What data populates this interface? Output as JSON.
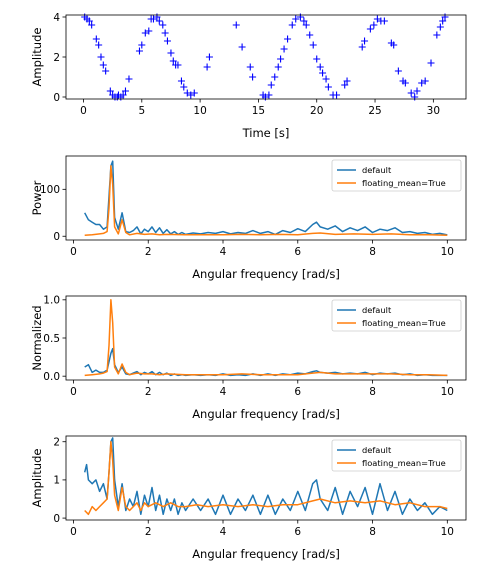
{
  "colors": {
    "blue": "#1f77b4",
    "orange": "#ff7f0e",
    "marker": "#0000ff"
  },
  "chart_data": [
    {
      "type": "scatter",
      "marker": "+",
      "xlabel": "Time [s]",
      "ylabel": "Amplitude",
      "xlim": [
        -1.5,
        32.8
      ],
      "ylim": [
        -0.1,
        4.1
      ],
      "xticks": [
        "0",
        "5",
        "10",
        "15",
        "20",
        "25",
        "30"
      ],
      "yticks": [
        "0",
        "2",
        "4"
      ],
      "x": [
        0.1,
        0.3,
        0.5,
        0.7,
        1.1,
        1.3,
        1.5,
        1.7,
        1.9,
        2.3,
        2.5,
        2.7,
        2.9,
        3.0,
        3.2,
        3.4,
        3.6,
        3.9,
        4.8,
        5.0,
        5.3,
        5.6,
        5.8,
        6.0,
        6.3,
        6.5,
        6.8,
        7.0,
        7.2,
        7.5,
        7.7,
        7.9,
        8.1,
        8.4,
        8.6,
        8.9,
        9.2,
        9.5,
        10.6,
        10.8,
        13.1,
        13.6,
        14.3,
        14.5,
        15.4,
        15.6,
        15.9,
        16.1,
        16.4,
        16.7,
        16.9,
        17.2,
        17.5,
        17.9,
        18.2,
        18.6,
        18.9,
        19.1,
        19.4,
        19.7,
        20.0,
        20.3,
        20.5,
        20.8,
        21.0,
        21.4,
        21.7,
        22.4,
        22.6,
        23.9,
        24.1,
        24.6,
        24.9,
        25.2,
        25.5,
        25.8,
        26.4,
        26.6,
        27.0,
        27.4,
        27.6,
        28.1,
        28.4,
        28.6,
        29.0,
        29.3,
        29.8,
        30.3,
        30.6,
        30.8,
        31.0
      ],
      "y": [
        4.0,
        3.9,
        3.8,
        3.6,
        2.9,
        2.6,
        2.0,
        1.6,
        1.3,
        0.3,
        0.1,
        0.0,
        0.0,
        0.1,
        0.0,
        0.1,
        0.3,
        0.9,
        2.3,
        2.6,
        3.2,
        3.3,
        3.9,
        3.9,
        4.0,
        3.8,
        3.6,
        3.2,
        2.8,
        2.2,
        1.8,
        1.6,
        1.6,
        0.8,
        0.5,
        0.2,
        0.1,
        0.2,
        1.5,
        2.0,
        3.6,
        2.5,
        1.5,
        1.0,
        0.1,
        0.0,
        0.1,
        0.6,
        1.0,
        1.5,
        1.9,
        2.4,
        2.9,
        3.6,
        3.9,
        4.0,
        3.8,
        3.6,
        3.1,
        2.6,
        1.9,
        1.5,
        1.2,
        0.9,
        0.5,
        0.1,
        0.1,
        0.6,
        0.8,
        2.5,
        2.8,
        3.4,
        3.6,
        3.9,
        3.8,
        3.8,
        2.7,
        2.6,
        1.3,
        0.8,
        0.7,
        0.2,
        0.0,
        0.3,
        0.7,
        0.8,
        1.7,
        3.1,
        3.5,
        3.8,
        4.0
      ]
    },
    {
      "type": "line",
      "xlabel": "Angular frequency [rad/s]",
      "ylabel": "Power",
      "xlim": [
        -0.2,
        10.5
      ],
      "ylim": [
        -8,
        171
      ],
      "xticks": [
        "0",
        "2",
        "4",
        "6",
        "8",
        "10"
      ],
      "yticks": [
        "0",
        "100"
      ],
      "legend": "upper-right",
      "series": [
        {
          "name": "default",
          "color": "#1f77b4",
          "x": [
            0.3,
            0.4,
            0.5,
            0.6,
            0.7,
            0.8,
            0.9,
            1.0,
            1.05,
            1.1,
            1.2,
            1.3,
            1.4,
            1.5,
            1.6,
            1.7,
            1.8,
            1.9,
            2.0,
            2.1,
            2.2,
            2.3,
            2.4,
            2.5,
            2.6,
            2.7,
            2.8,
            2.9,
            3.0,
            3.2,
            3.4,
            3.6,
            3.8,
            4.0,
            4.2,
            4.4,
            4.6,
            4.8,
            5.0,
            5.2,
            5.4,
            5.6,
            5.8,
            6.0,
            6.2,
            6.4,
            6.5,
            6.6,
            6.8,
            7.0,
            7.2,
            7.4,
            7.6,
            7.8,
            8.0,
            8.2,
            8.4,
            8.6,
            8.8,
            9.0,
            9.2,
            9.4,
            9.6,
            9.8,
            10.0
          ],
          "y": [
            50,
            35,
            30,
            25,
            25,
            15,
            20,
            150,
            160,
            40,
            15,
            50,
            10,
            8,
            12,
            20,
            5,
            15,
            10,
            20,
            8,
            18,
            6,
            14,
            5,
            10,
            4,
            8,
            4,
            7,
            5,
            8,
            6,
            10,
            5,
            8,
            6,
            12,
            6,
            10,
            4,
            12,
            8,
            16,
            10,
            25,
            30,
            20,
            15,
            22,
            10,
            18,
            12,
            20,
            8,
            15,
            12,
            18,
            8,
            10,
            6,
            8,
            4,
            6,
            3
          ]
        },
        {
          "name": "floating_mean=True",
          "color": "#ff7f0e",
          "x": [
            0.3,
            0.5,
            0.7,
            0.8,
            0.9,
            0.95,
            1.0,
            1.05,
            1.1,
            1.2,
            1.3,
            1.4,
            1.5,
            1.7,
            1.9,
            2.1,
            2.3,
            2.5,
            3.0,
            3.5,
            4.0,
            4.5,
            5.0,
            5.5,
            6.0,
            6.4,
            6.6,
            7.0,
            7.5,
            8.0,
            8.5,
            9.0,
            9.5,
            10.0
          ],
          "y": [
            2,
            3,
            5,
            6,
            10,
            60,
            150,
            110,
            20,
            5,
            35,
            8,
            3,
            6,
            4,
            5,
            3,
            4,
            3,
            3,
            3,
            4,
            3,
            4,
            3,
            6,
            7,
            4,
            5,
            4,
            5,
            3,
            3,
            2
          ]
        }
      ]
    },
    {
      "type": "line",
      "xlabel": "Angular frequency [rad/s]",
      "ylabel": "Normalized",
      "xlim": [
        -0.2,
        10.5
      ],
      "ylim": [
        -0.05,
        1.05
      ],
      "xticks": [
        "0",
        "2",
        "4",
        "6",
        "8",
        "10"
      ],
      "yticks": [
        "0.0",
        "0.5",
        "1.0"
      ],
      "legend": "upper-right",
      "series": [
        {
          "name": "default",
          "color": "#1f77b4",
          "x": [
            0.3,
            0.4,
            0.5,
            0.6,
            0.7,
            0.8,
            0.9,
            1.0,
            1.05,
            1.1,
            1.2,
            1.3,
            1.4,
            1.5,
            1.6,
            1.7,
            1.8,
            1.9,
            2.0,
            2.1,
            2.2,
            2.3,
            2.4,
            2.5,
            2.6,
            2.7,
            2.8,
            2.9,
            3.0,
            3.2,
            3.4,
            3.6,
            3.8,
            4.0,
            4.2,
            4.4,
            4.6,
            4.8,
            5.0,
            5.2,
            5.4,
            5.6,
            5.8,
            6.0,
            6.2,
            6.4,
            6.5,
            6.6,
            6.8,
            7.0,
            7.2,
            7.4,
            7.6,
            7.8,
            8.0,
            8.2,
            8.4,
            8.6,
            8.8,
            9.0,
            9.2,
            9.4,
            9.6,
            9.8,
            10.0
          ],
          "y": [
            0.12,
            0.15,
            0.05,
            0.08,
            0.05,
            0.05,
            0.08,
            0.3,
            0.36,
            0.15,
            0.05,
            0.12,
            0.03,
            0.02,
            0.04,
            0.06,
            0.02,
            0.05,
            0.03,
            0.06,
            0.02,
            0.05,
            0.02,
            0.04,
            0.01,
            0.03,
            0.01,
            0.02,
            0.01,
            0.02,
            0.01,
            0.02,
            0.01,
            0.03,
            0.01,
            0.02,
            0.01,
            0.03,
            0.01,
            0.03,
            0.01,
            0.03,
            0.02,
            0.04,
            0.03,
            0.06,
            0.07,
            0.05,
            0.04,
            0.05,
            0.03,
            0.04,
            0.03,
            0.05,
            0.02,
            0.04,
            0.03,
            0.04,
            0.02,
            0.03,
            0.01,
            0.02,
            0.01,
            0.01,
            0.01
          ]
        },
        {
          "name": "floating_mean=True",
          "color": "#ff7f0e",
          "x": [
            0.3,
            0.5,
            0.7,
            0.8,
            0.9,
            0.95,
            1.0,
            1.05,
            1.1,
            1.2,
            1.3,
            1.4,
            1.5,
            1.7,
            1.9,
            2.1,
            2.3,
            2.5,
            3.0,
            3.5,
            4.0,
            4.5,
            5.0,
            5.5,
            6.0,
            6.4,
            6.6,
            7.0,
            7.5,
            8.0,
            8.5,
            9.0,
            9.5,
            10.0
          ],
          "y": [
            0.01,
            0.02,
            0.03,
            0.04,
            0.06,
            0.4,
            1.0,
            0.7,
            0.12,
            0.03,
            0.16,
            0.05,
            0.02,
            0.04,
            0.03,
            0.03,
            0.02,
            0.03,
            0.02,
            0.02,
            0.02,
            0.03,
            0.02,
            0.02,
            0.02,
            0.04,
            0.05,
            0.03,
            0.03,
            0.03,
            0.03,
            0.02,
            0.02,
            0.01
          ]
        }
      ]
    },
    {
      "type": "line",
      "xlabel": "Angular frequency [rad/s]",
      "ylabel": "Amplitude",
      "xlim": [
        -0.2,
        10.5
      ],
      "ylim": [
        -0.05,
        2.15
      ],
      "xticks": [
        "0",
        "2",
        "4",
        "6",
        "8",
        "10"
      ],
      "yticks": [
        "0",
        "1",
        "2"
      ],
      "legend": "upper-right",
      "series": [
        {
          "name": "default",
          "color": "#1f77b4",
          "x": [
            0.3,
            0.35,
            0.4,
            0.5,
            0.6,
            0.7,
            0.8,
            0.9,
            0.95,
            1.0,
            1.05,
            1.1,
            1.2,
            1.3,
            1.4,
            1.5,
            1.6,
            1.7,
            1.8,
            1.9,
            2.0,
            2.1,
            2.2,
            2.3,
            2.4,
            2.5,
            2.6,
            2.7,
            2.8,
            2.9,
            3.0,
            3.2,
            3.4,
            3.6,
            3.8,
            4.0,
            4.2,
            4.4,
            4.6,
            4.8,
            5.0,
            5.2,
            5.4,
            5.6,
            5.8,
            6.0,
            6.2,
            6.4,
            6.5,
            6.6,
            6.8,
            7.0,
            7.2,
            7.4,
            7.6,
            7.8,
            8.0,
            8.2,
            8.4,
            8.6,
            8.8,
            9.0,
            9.2,
            9.4,
            9.6,
            9.8,
            10.0
          ],
          "y": [
            1.2,
            1.4,
            1.0,
            0.9,
            1.0,
            0.7,
            0.9,
            0.5,
            1.2,
            2.0,
            2.1,
            1.0,
            0.3,
            0.9,
            0.2,
            0.5,
            0.3,
            0.7,
            0.1,
            0.6,
            0.3,
            0.8,
            0.2,
            0.6,
            0.1,
            0.5,
            0.2,
            0.5,
            0.1,
            0.4,
            0.2,
            0.5,
            0.2,
            0.5,
            0.1,
            0.6,
            0.1,
            0.5,
            0.2,
            0.6,
            0.1,
            0.6,
            0.1,
            0.5,
            0.2,
            0.7,
            0.2,
            0.9,
            1.0,
            0.5,
            0.2,
            0.8,
            0.1,
            0.7,
            0.3,
            0.8,
            0.1,
            0.9,
            0.2,
            0.7,
            0.1,
            0.5,
            0.2,
            0.4,
            0.1,
            0.3,
            0.2
          ]
        },
        {
          "name": "floating_mean=True",
          "color": "#ff7f0e",
          "x": [
            0.3,
            0.4,
            0.5,
            0.6,
            0.7,
            0.8,
            0.9,
            0.95,
            1.0,
            1.05,
            1.1,
            1.2,
            1.3,
            1.4,
            1.5,
            1.6,
            1.7,
            1.8,
            1.9,
            2.0,
            2.2,
            2.4,
            2.6,
            2.8,
            3.0,
            3.3,
            3.6,
            4.0,
            4.4,
            4.8,
            5.2,
            5.6,
            6.0,
            6.4,
            6.6,
            7.0,
            7.4,
            7.8,
            8.2,
            8.6,
            9.0,
            9.4,
            9.8,
            10.0
          ],
          "y": [
            0.2,
            0.1,
            0.3,
            0.2,
            0.3,
            0.4,
            0.5,
            1.2,
            2.0,
            1.5,
            0.6,
            0.2,
            0.8,
            0.3,
            0.2,
            0.3,
            0.4,
            0.2,
            0.4,
            0.3,
            0.4,
            0.3,
            0.4,
            0.3,
            0.3,
            0.35,
            0.3,
            0.35,
            0.3,
            0.35,
            0.3,
            0.35,
            0.35,
            0.45,
            0.5,
            0.4,
            0.45,
            0.4,
            0.45,
            0.35,
            0.4,
            0.3,
            0.3,
            0.25
          ]
        }
      ]
    }
  ]
}
